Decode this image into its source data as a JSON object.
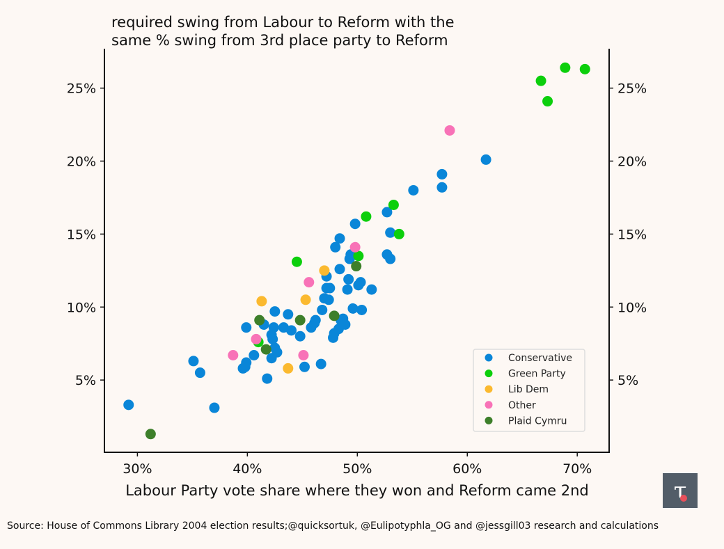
{
  "chart_data": {
    "type": "scatter",
    "title": [
      "required swing from Labour to Reform with the",
      "same % swing from 3rd place party to Reform"
    ],
    "xlabel": "Labour Party vote share where they won and Reform came 2nd",
    "ylabel": "",
    "xlim": [
      27.0,
      72.9
    ],
    "ylim": [
      0.05,
      27.7
    ],
    "xticks": [
      30,
      40,
      50,
      60,
      70
    ],
    "xtick_labels": [
      "30%",
      "40%",
      "50%",
      "60%",
      "70%"
    ],
    "yticks": [
      5,
      10,
      15,
      20,
      25
    ],
    "ytick_labels": [
      "5%",
      "10%",
      "15%",
      "20%",
      "25%"
    ],
    "grid": false,
    "legend_placement": "lower-right",
    "series": [
      {
        "name": "Conservative",
        "color": "#0a86d8",
        "points": [
          [
            29.2,
            3.3
          ],
          [
            37.0,
            3.1
          ],
          [
            35.1,
            6.3
          ],
          [
            35.7,
            5.5
          ],
          [
            39.6,
            5.8
          ],
          [
            39.9,
            6.2
          ],
          [
            39.8,
            5.9
          ],
          [
            40.6,
            6.7
          ],
          [
            41.8,
            5.1
          ],
          [
            39.9,
            8.6
          ],
          [
            41.5,
            8.8
          ],
          [
            42.5,
            9.7
          ],
          [
            42.4,
            8.6
          ],
          [
            42.2,
            8.1
          ],
          [
            42.2,
            6.5
          ],
          [
            42.5,
            7.2
          ],
          [
            42.7,
            6.9
          ],
          [
            42.3,
            7.8
          ],
          [
            43.3,
            8.6
          ],
          [
            43.7,
            9.5
          ],
          [
            44.0,
            8.4
          ],
          [
            44.8,
            8.0
          ],
          [
            45.2,
            5.9
          ],
          [
            45.8,
            8.6
          ],
          [
            46.1,
            8.9
          ],
          [
            46.2,
            9.1
          ],
          [
            46.7,
            6.1
          ],
          [
            46.8,
            9.8
          ],
          [
            47.0,
            10.6
          ],
          [
            47.2,
            11.3
          ],
          [
            47.2,
            12.1
          ],
          [
            47.4,
            10.5
          ],
          [
            47.8,
            7.9
          ],
          [
            47.9,
            8.2
          ],
          [
            48.3,
            8.5
          ],
          [
            48.5,
            9.1
          ],
          [
            48.7,
            9.2
          ],
          [
            48.9,
            8.8
          ],
          [
            48.4,
            12.6
          ],
          [
            48.0,
            14.1
          ],
          [
            48.4,
            14.7
          ],
          [
            49.2,
            11.9
          ],
          [
            49.1,
            11.2
          ],
          [
            49.3,
            13.3
          ],
          [
            49.4,
            13.6
          ],
          [
            49.8,
            15.7
          ],
          [
            49.6,
            9.9
          ],
          [
            50.3,
            11.7
          ],
          [
            50.1,
            11.5
          ],
          [
            50.4,
            9.8
          ],
          [
            51.3,
            11.2
          ],
          [
            52.7,
            16.5
          ],
          [
            52.7,
            13.6
          ],
          [
            53.0,
            13.3
          ],
          [
            53.0,
            15.1
          ],
          [
            55.1,
            18.0
          ],
          [
            57.7,
            18.2
          ],
          [
            57.7,
            19.1
          ],
          [
            61.7,
            20.1
          ],
          [
            47.5,
            11.3
          ]
        ]
      },
      {
        "name": "Green Party",
        "color": "#0ccf0c",
        "points": [
          [
            44.5,
            13.1
          ],
          [
            41.0,
            7.6
          ],
          [
            50.1,
            13.5
          ],
          [
            50.8,
            16.2
          ],
          [
            53.3,
            17.0
          ],
          [
            53.8,
            15.0
          ],
          [
            66.7,
            25.5
          ],
          [
            68.9,
            26.4
          ],
          [
            70.7,
            26.3
          ],
          [
            67.3,
            24.1
          ]
        ]
      },
      {
        "name": "Lib Dem",
        "color": "#fbb92f",
        "points": [
          [
            41.3,
            10.4
          ],
          [
            45.3,
            10.5
          ],
          [
            47.0,
            12.5
          ],
          [
            43.7,
            5.8
          ]
        ]
      },
      {
        "name": "Other",
        "color": "#f872b7",
        "points": [
          [
            38.7,
            6.7
          ],
          [
            40.8,
            7.8
          ],
          [
            45.6,
            11.7
          ],
          [
            45.1,
            6.7
          ],
          [
            49.8,
            14.1
          ],
          [
            58.4,
            22.1
          ]
        ]
      },
      {
        "name": "Plaid Cymru",
        "color": "#3d7f2a",
        "points": [
          [
            31.2,
            1.3
          ],
          [
            41.1,
            9.1
          ],
          [
            41.7,
            7.1
          ],
          [
            44.8,
            9.1
          ],
          [
            47.9,
            9.4
          ],
          [
            49.9,
            12.8
          ]
        ]
      }
    ]
  },
  "source": "Source: House of Commons Library 2004 election results;@quicksortuk, @Eulipotyphla_OG and @jessgill03 research and calculations",
  "logo": {
    "text": "τ",
    "bg": "#525d68"
  }
}
